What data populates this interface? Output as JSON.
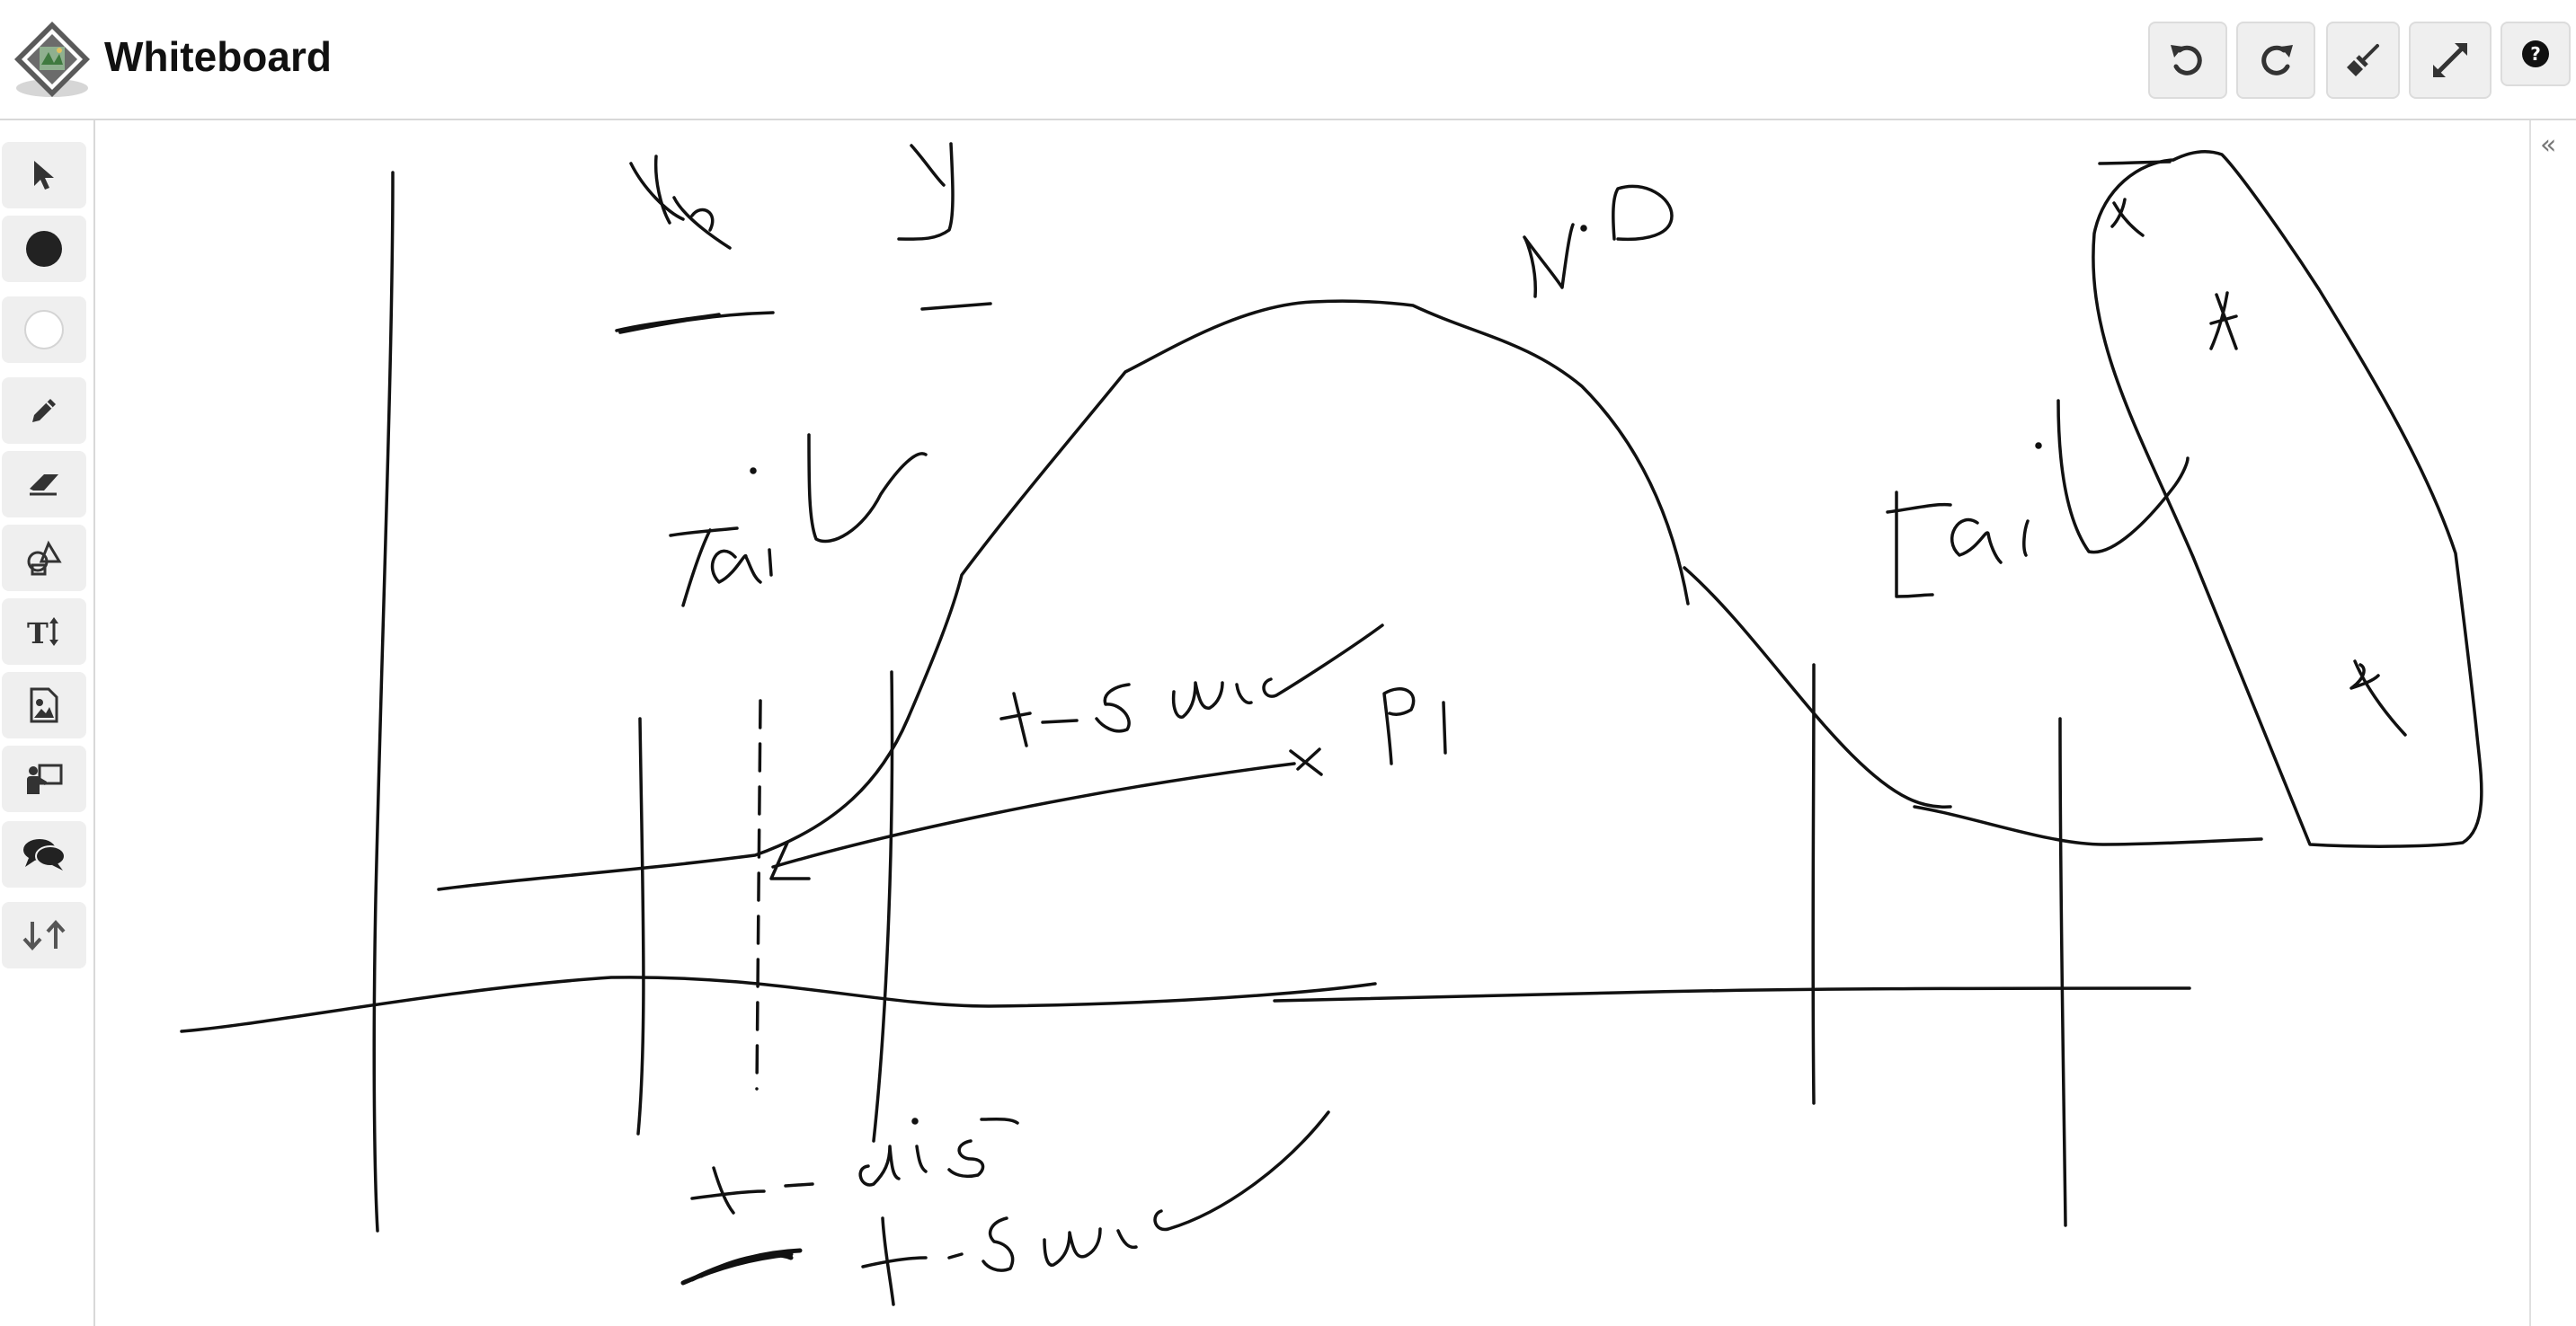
{
  "app": {
    "title": "Whiteboard"
  },
  "toolbar": {
    "buttons": [
      {
        "name": "undo",
        "icon": "undo-icon"
      },
      {
        "name": "redo",
        "icon": "redo-icon"
      },
      {
        "name": "clear",
        "icon": "broom-icon"
      },
      {
        "name": "fullscreen",
        "icon": "expand-icon"
      },
      {
        "name": "help",
        "icon": "help-icon"
      }
    ]
  },
  "tools": [
    {
      "name": "select",
      "icon": "cursor-icon"
    },
    {
      "name": "color-black",
      "icon": "black-circle-icon"
    },
    {
      "name": "color-white",
      "icon": "white-circle-icon"
    },
    {
      "name": "pen",
      "icon": "pencil-icon"
    },
    {
      "name": "eraser",
      "icon": "eraser-icon"
    },
    {
      "name": "shapes",
      "icon": "shapes-icon"
    },
    {
      "name": "text",
      "icon": "text-icon"
    },
    {
      "name": "image",
      "icon": "image-icon"
    },
    {
      "name": "teacher",
      "icon": "teacher-icon"
    },
    {
      "name": "chat",
      "icon": "chat-icon"
    },
    {
      "name": "sort",
      "icon": "arrows-updown-icon"
    }
  ],
  "panel": {
    "collapse_glyph": "«"
  },
  "colors": {
    "ink": "#111111",
    "button_bg": "#efefef",
    "border": "#d8d8d8"
  },
  "whiteboard": {
    "drawing": "handwritten sketch",
    "handwriting": [
      "x",
      "y",
      "N.D",
      "tail",
      "tail",
      "t-score",
      "P1",
      "t-dis",
      "t-score",
      "x",
      "x",
      "x"
    ]
  }
}
